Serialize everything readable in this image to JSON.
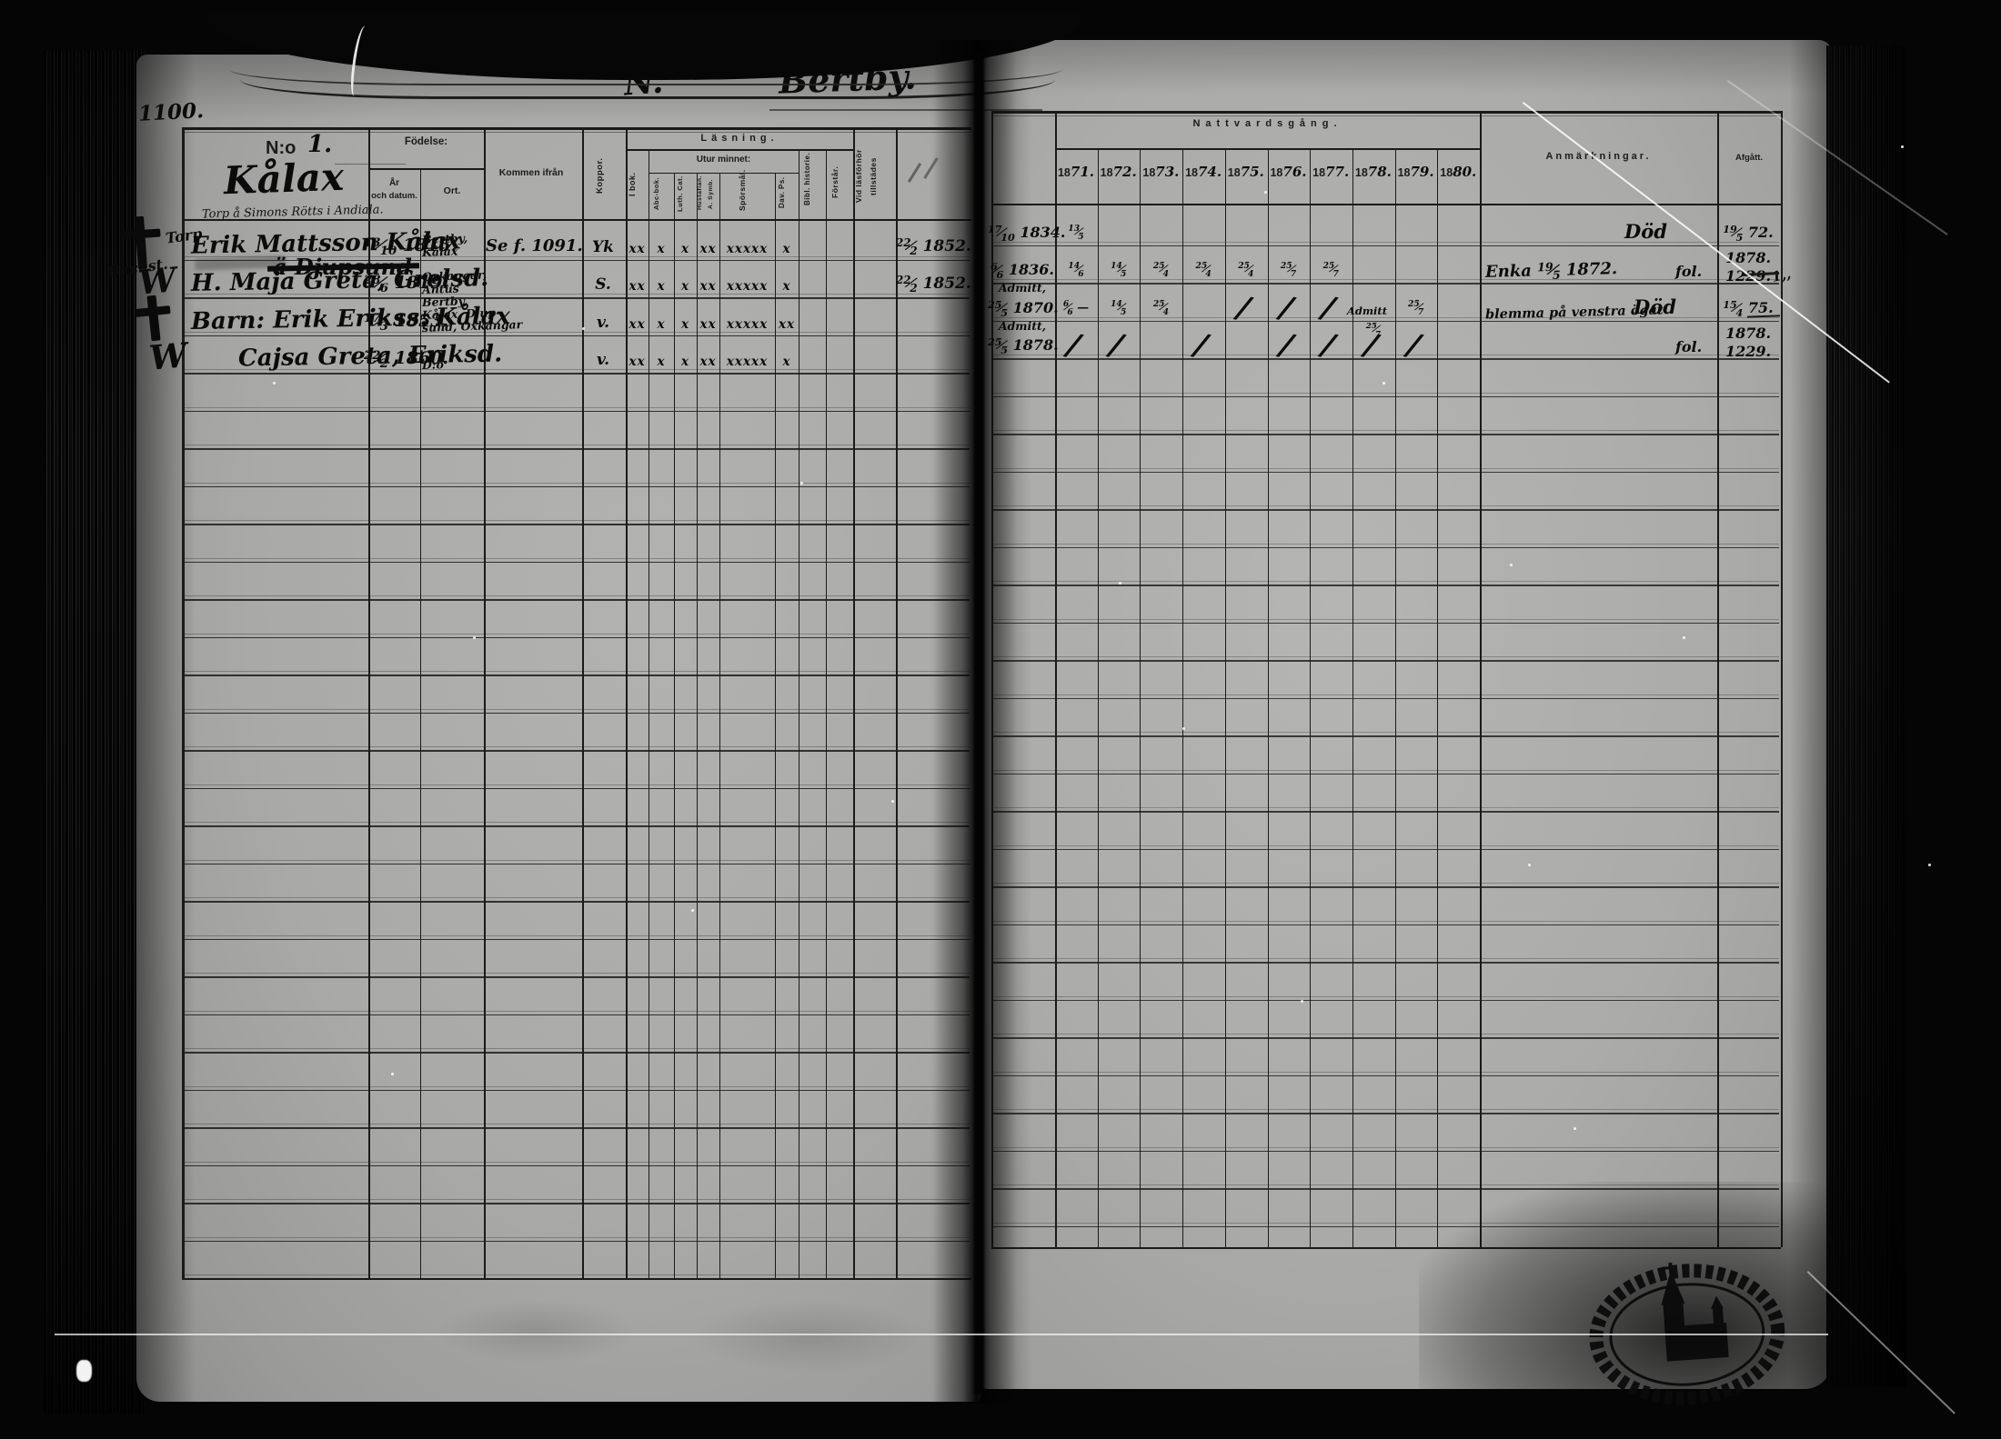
{
  "page_header": {
    "folio": "1100.",
    "letter": "N.",
    "parish": "Bertby."
  },
  "name_column_header": {
    "no_label": "N:o",
    "no_value": "1.",
    "village": "Kålax",
    "note": "Torp å Simons Rötts i Andiala."
  },
  "left_headers": {
    "fodelse": "Födelse:",
    "ar_line1": "År",
    "ar_line2": "och datum.",
    "ort": "Ort.",
    "kommen_ifran": "Kommen ifrån",
    "koppor": "Koppor.",
    "lasning": "Läsning.",
    "i_bok": "I bok.",
    "utur_minnet": "Utur minnet:",
    "abc_bok": "Abc-bok.",
    "luth_cat": "Luth. Cat.",
    "hustaflan_1": "Hustaflan.",
    "hustaflan_2": "A. Symb.",
    "sporsmal": "Spörsmål.",
    "dav_ps": "Dav. Ps.",
    "bibl_historie": "Bibl. historie.",
    "forstar": "Förstår.",
    "vid_lasforhor_1": "Vid läsförhör",
    "vid_lasforhor_2": "tillstädes"
  },
  "right_headers": {
    "nattvardsgang": "Nattvardsgång.",
    "years": [
      "1871.",
      "1872.",
      "1873.",
      "1874.",
      "1875.",
      "1876.",
      "1877.",
      "1878.",
      "1879.",
      "1880."
    ],
    "anmarkningar": "Anmärkningar.",
    "afgatt": "Afgått."
  },
  "entries": [
    {
      "margin_symbol": "cross",
      "margin_label": "Torp",
      "struck_name": "",
      "name": "Erik Mattsson Kålax",
      "born": "13/10 1815.",
      "ort": [
        "Bertby,",
        "Kålax"
      ],
      "ort_struck": [],
      "kommen_ifran": "Se f. 1091.",
      "koppor": "Yk",
      "reading": [
        "xx",
        "x",
        "x",
        "xx",
        "xxxxx",
        "x"
      ],
      "exam": "22/2 1852.",
      "communion": [
        "17/10 1834."
      ],
      "years": [
        "13/5",
        "",
        "",
        "",
        "",
        "",
        "",
        "",
        "",
        ""
      ],
      "remark": "",
      "remark2": "Död",
      "remark_fol": "",
      "afgatt": [
        "19/5 72."
      ]
    },
    {
      "margin_symbol": "W",
      "margin_label": "Backst.",
      "struck_name": "ä Djupsund",
      "name": "H. Maja Greta, Grelsd.",
      "born": "28/6 1819.",
      "ort": [
        "Oxkangar,",
        "Antus"
      ],
      "ort_struck": [
        0
      ],
      "kommen_ifran": "",
      "koppor": "S.",
      "reading": [
        "xx",
        "x",
        "x",
        "xx",
        "xxxxx",
        "x"
      ],
      "exam": "22/2 1852.",
      "communion": [
        "6/6 1836.",
        "Admitt,"
      ],
      "years": [
        "14/6",
        "14/5",
        "25/4",
        "25/4",
        "25/4",
        "25/7",
        "25/7",
        "",
        "",
        ""
      ],
      "remark": "Enka 19/5 1872.",
      "remark2": "",
      "remark_fol": "fol.",
      "afgatt": [
        "1878.",
        "1229."
      ]
    },
    {
      "margin_symbol": "cross",
      "margin_label": "",
      "struck_name": "",
      "name": "Barn: Erik Erikss. Kålax",
      "born": "17/3 1853.",
      "ort": [
        "Bertby,",
        "Kålax, Djup-",
        "sund, Oxkangar"
      ],
      "ort_struck": [],
      "kommen_ifran": "",
      "koppor": "v.",
      "reading": [
        "xx",
        "x",
        "x",
        "xx",
        "xxxxx",
        "xx"
      ],
      "exam": "",
      "communion": [
        "25/5 1870.",
        "Admitt,"
      ],
      "years": [
        "6/6 —",
        "14/5",
        "25/4",
        "",
        "/",
        "/",
        "/",
        "Admitt, 25/7",
        "25/7",
        ""
      ],
      "remark": "blemma på venstra ögat",
      "remark2": "Död",
      "remark_fol": "",
      "afgatt": [
        "15/4 75."
      ]
    },
    {
      "margin_symbol": "W",
      "margin_label": "",
      "struck_name": "",
      "name": "Cajsa Greta, Eriksd.",
      "born": "22/2 1860.",
      "ort": [
        "D:o"
      ],
      "ort_struck": [],
      "kommen_ifran": "",
      "koppor": "v.",
      "reading": [
        "xx",
        "x",
        "x",
        "xx",
        "xxxxx",
        "x"
      ],
      "exam": "",
      "communion": [
        "25/5 1878."
      ],
      "years": [
        "/",
        "/",
        "",
        "/",
        "",
        "/",
        "/",
        "/",
        "/",
        ""
      ],
      "remark": "",
      "remark2": "",
      "remark_fol": "fol.",
      "afgatt": [
        "1878.",
        "1229."
      ]
    }
  ],
  "marginalia": {
    "edge_note": "1,,"
  },
  "stamp": {
    "motif": "church-silhouette-oval-stamp"
  },
  "colors": {
    "paper": "#abaaa8",
    "ink": "#0b0b0b",
    "background": "#050505"
  }
}
